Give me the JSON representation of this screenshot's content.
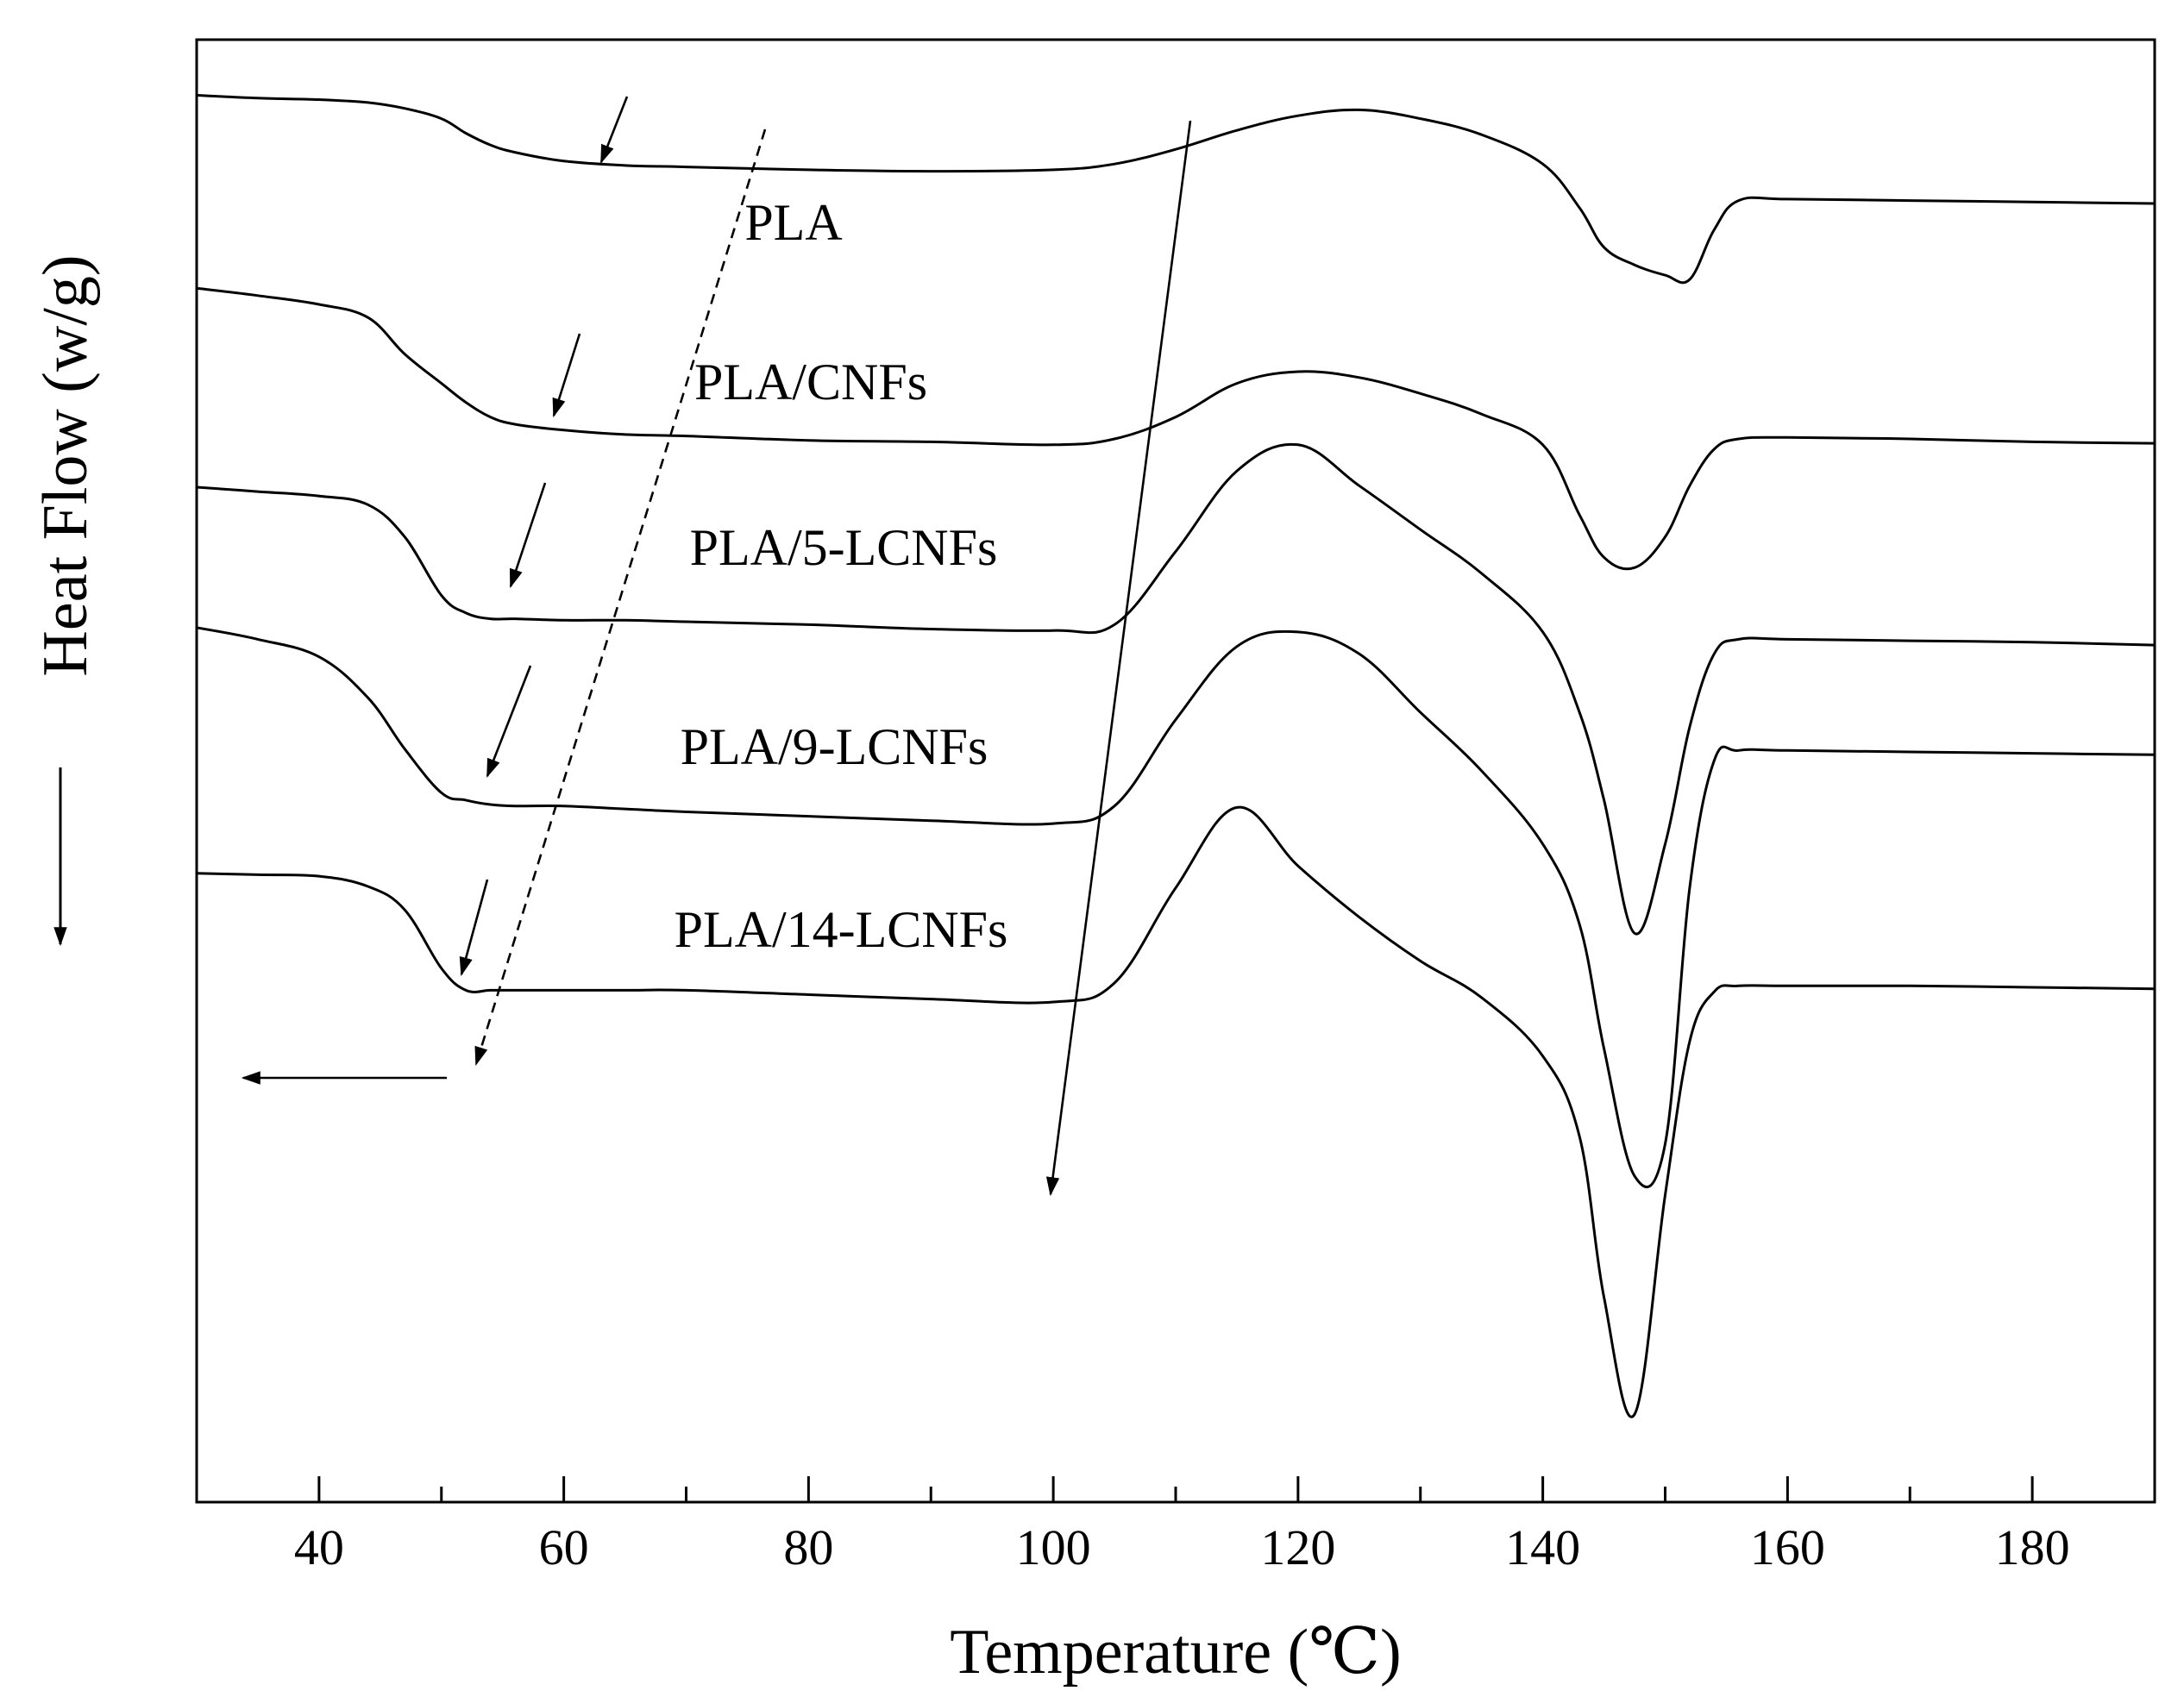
{
  "chart_data": {
    "type": "line",
    "title": "",
    "xlabel": "Temperature (℃)",
    "ylabel": "Heat Flow (w/g)",
    "xlim": [
      30,
      190
    ],
    "ylim": [
      0,
      100
    ],
    "xticks": [
      40,
      60,
      80,
      100,
      120,
      140,
      160,
      180
    ],
    "grid": false,
    "legend": "none",
    "x": [
      30,
      35,
      40,
      44,
      47,
      50,
      52,
      54,
      56,
      60,
      65,
      70,
      80,
      90,
      100,
      105,
      110,
      115,
      120,
      125,
      130,
      135,
      140,
      143,
      145,
      147.5,
      150,
      152,
      154,
      156,
      160,
      170,
      180,
      190
    ],
    "series": [
      {
        "name": "PLA",
        "label": "PLA",
        "values": [
          96.2,
          96.0,
          95.9,
          95.7,
          95.3,
          94.6,
          93.6,
          92.8,
          92.3,
          91.7,
          91.4,
          91.3,
          91.1,
          91.0,
          91.1,
          91.5,
          92.5,
          93.8,
          94.8,
          95.2,
          94.6,
          93.5,
          91.5,
          88.5,
          85.8,
          84.6,
          83.9,
          83.6,
          87.0,
          89.0,
          89.1,
          89.0,
          88.9,
          88.8
        ]
      },
      {
        "name": "PLA/CNFs",
        "label": "PLA/CNFs",
        "values": [
          83.0,
          82.5,
          81.9,
          81.0,
          78.5,
          76.5,
          75.2,
          74.2,
          73.7,
          73.3,
          73.0,
          72.9,
          72.6,
          72.5,
          72.3,
          72.7,
          74.2,
          76.5,
          77.3,
          76.9,
          75.8,
          74.4,
          72.3,
          67.5,
          64.6,
          63.9,
          66.0,
          69.5,
          72.0,
          72.7,
          72.8,
          72.7,
          72.5,
          72.4
        ]
      },
      {
        "name": "PLA/5-LCNFs",
        "label": "PLA/5-LCNFs",
        "values": [
          69.4,
          69.1,
          68.8,
          68.2,
          66.0,
          62.0,
          60.8,
          60.4,
          60.4,
          60.3,
          60.3,
          60.2,
          60.0,
          59.7,
          59.6,
          60.0,
          65.0,
          70.5,
          72.3,
          69.5,
          66.5,
          63.5,
          59.5,
          54.0,
          48.0,
          38.9,
          45.0,
          53.0,
          58.0,
          59.0,
          59.0,
          58.9,
          58.8,
          58.6
        ]
      },
      {
        "name": "PLA/9-LCNFs",
        "label": "PLA/9-LCNFs",
        "values": [
          59.8,
          59.0,
          57.8,
          55.0,
          51.5,
          48.5,
          48.0,
          47.7,
          47.6,
          47.6,
          47.4,
          47.2,
          46.9,
          46.6,
          46.4,
          47.6,
          53.5,
          58.5,
          59.5,
          58.0,
          54.0,
          50.0,
          45.0,
          39.5,
          31.0,
          22.3,
          24.5,
          42.0,
          50.7,
          51.4,
          51.4,
          51.3,
          51.2,
          51.1
        ]
      },
      {
        "name": "PLA/14-LCNFs",
        "label": "PLA/14-LCNFs",
        "values": [
          43.0,
          42.9,
          42.8,
          42.1,
          40.5,
          36.5,
          35.0,
          35.0,
          35.0,
          35.0,
          35.0,
          35.0,
          34.7,
          34.4,
          34.2,
          35.5,
          42.0,
          47.5,
          43.5,
          40.0,
          37.0,
          34.5,
          30.5,
          25.0,
          14.0,
          6.0,
          21.0,
          31.5,
          34.9,
          35.3,
          35.3,
          35.3,
          35.2,
          35.1
        ]
      }
    ],
    "annotations": [
      {
        "type": "tg-markers",
        "description": "short arrows marking glass transition on each curve"
      },
      {
        "type": "dashed-arrow",
        "description": "trend of Tg shifting to lower temperature"
      },
      {
        "type": "solid-arrow",
        "description": "trend of cold crystallization peak"
      },
      {
        "type": "left-arrow",
        "description": "shift direction"
      }
    ]
  },
  "heat_flow_direction_symbol": "↓"
}
